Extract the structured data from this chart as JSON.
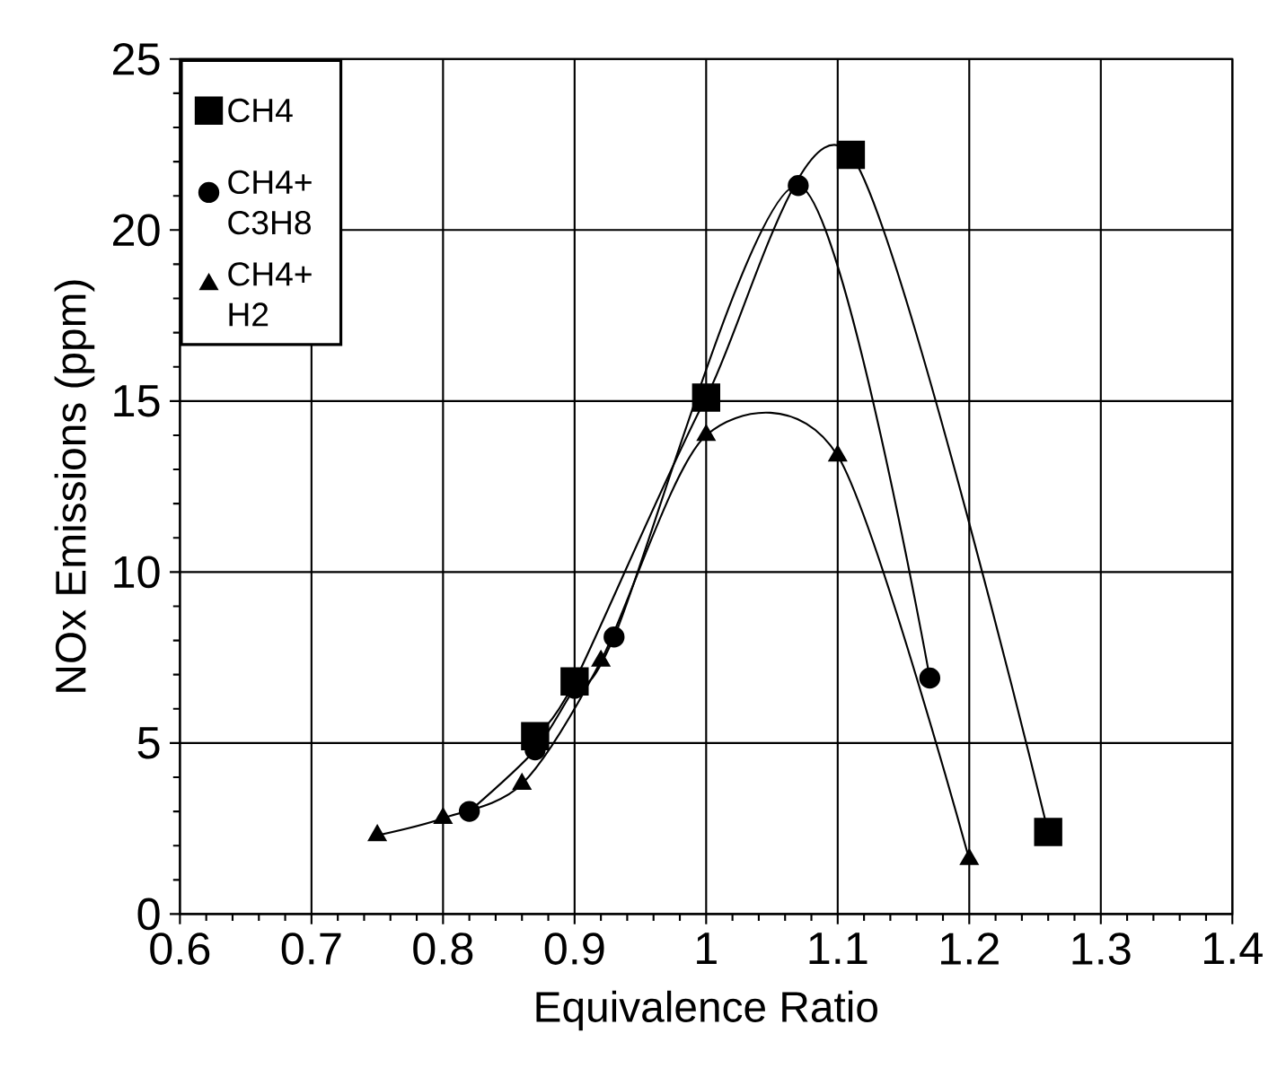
{
  "chart_data": {
    "type": "line",
    "xlabel": "Equivalence Ratio",
    "ylabel": "NOx Emissions (ppm)",
    "xlim": [
      0.6,
      1.4
    ],
    "xticks": [
      0.6,
      0.7,
      0.8,
      0.9,
      1,
      1.1,
      1.2,
      1.3,
      1.4
    ],
    "ylim": [
      0,
      25
    ],
    "yticks": [
      0,
      5,
      10,
      15,
      20,
      25
    ],
    "grid": true,
    "legend": "top left",
    "series": [
      {
        "name": "CH4",
        "color": "#000000",
        "marker": "square",
        "x": [
          0.87,
          0.9,
          1.0,
          1.11,
          1.26
        ],
        "values": [
          5.2,
          6.8,
          15.1,
          22.2,
          2.4
        ]
      },
      {
        "name": "CH4+ C3H8",
        "color": "#000000",
        "marker": "circle",
        "x": [
          0.82,
          0.87,
          0.9,
          0.93,
          1.07,
          1.17
        ],
        "values": [
          3.0,
          4.8,
          6.6,
          8.1,
          21.3,
          6.9
        ]
      },
      {
        "name": "CH4+ H2",
        "color": "#000000",
        "marker": "triangle",
        "x": [
          0.75,
          0.8,
          0.86,
          0.92,
          1.0,
          1.1,
          1.2
        ],
        "values": [
          2.3,
          2.8,
          3.8,
          7.4,
          14.0,
          13.4,
          1.6
        ]
      }
    ]
  }
}
